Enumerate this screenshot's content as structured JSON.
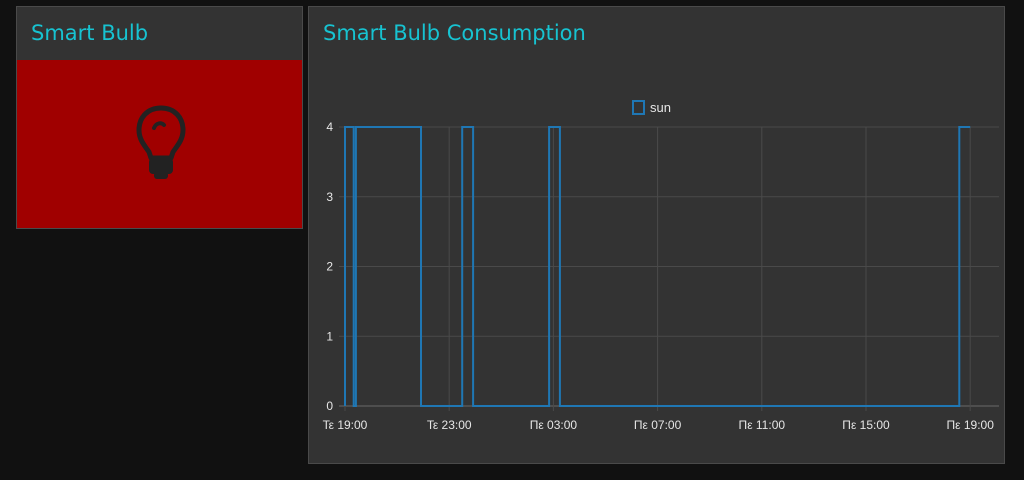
{
  "bulb_widget": {
    "title": "Smart Bulb",
    "panel_color": "#a00000",
    "icon": "lightbulb-icon",
    "icon_color": "#222222"
  },
  "consumption_widget": {
    "title": "Smart Bulb Consumption",
    "accent_color": "#17c3d1",
    "chart_data": {
      "type": "line",
      "title": "Smart Bulb Consumption",
      "xlabel": "",
      "ylabel": "",
      "x_ticks": [
        "Τε 19:00",
        "Τε 23:00",
        "Πε 03:00",
        "Πε 07:00",
        "Πε 11:00",
        "Πε 15:00",
        "Πε 19:00"
      ],
      "y_ticks": [
        0,
        1,
        2,
        3,
        4
      ],
      "ylim": [
        0,
        4
      ],
      "grid": true,
      "legend_position": "top",
      "series": [
        {
          "name": "sun",
          "color": "#1f77b4",
          "step": true,
          "points": [
            {
              "x": "Τε 19:00",
              "y": 0
            },
            {
              "x": "Τε 19:00",
              "y": 4
            },
            {
              "x": "Τε 19:20",
              "y": 4
            },
            {
              "x": "Τε 19:20",
              "y": 0
            },
            {
              "x": "Τε 19:25",
              "y": 0
            },
            {
              "x": "Τε 19:25",
              "y": 4
            },
            {
              "x": "Τε 21:55",
              "y": 4
            },
            {
              "x": "Τε 21:55",
              "y": 0
            },
            {
              "x": "Τε 23:30",
              "y": 0
            },
            {
              "x": "Τε 23:30",
              "y": 4
            },
            {
              "x": "Τε 23:55",
              "y": 4
            },
            {
              "x": "Τε 23:55",
              "y": 0
            },
            {
              "x": "Πε 02:50",
              "y": 0
            },
            {
              "x": "Πε 02:50",
              "y": 4
            },
            {
              "x": "Πε 03:15",
              "y": 4
            },
            {
              "x": "Πε 03:15",
              "y": 0
            },
            {
              "x": "Πε 18:35",
              "y": 0
            },
            {
              "x": "Πε 18:35",
              "y": 4
            },
            {
              "x": "Πε 19:00",
              "y": 4
            }
          ]
        }
      ]
    }
  }
}
